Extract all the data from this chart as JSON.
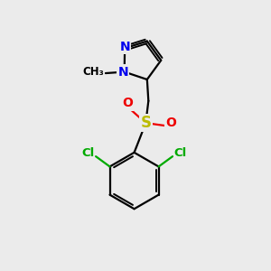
{
  "bg_color": "#ebebeb",
  "bond_color": "#000000",
  "bond_width": 1.6,
  "atom_colors": {
    "N": "#0000ee",
    "O": "#ee0000",
    "S": "#bbbb00",
    "Cl": "#00aa00",
    "C": "#000000"
  },
  "font_size_atom": 10,
  "font_size_small": 8.5
}
